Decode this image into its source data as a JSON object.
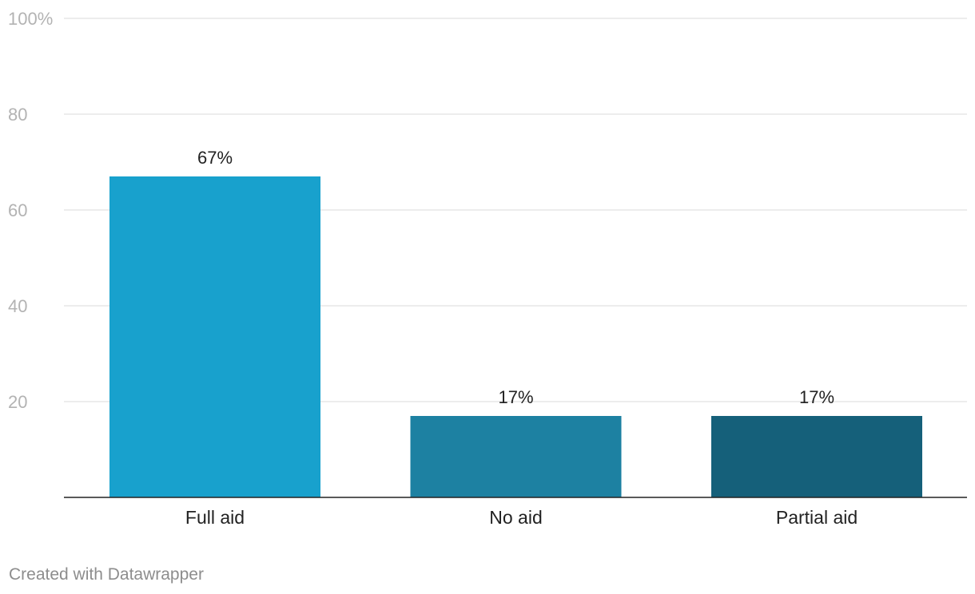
{
  "chart_data": {
    "type": "bar",
    "categories": [
      "Full aid",
      "No aid",
      "Partial aid"
    ],
    "values": [
      67,
      17,
      17
    ],
    "value_labels": [
      "67%",
      "17%",
      "17%"
    ],
    "colors": [
      "#18a1cd",
      "#1d81a2",
      "#15607a"
    ],
    "ylim": [
      0,
      100
    ],
    "y_ticks": [
      20,
      40,
      60,
      80,
      100
    ],
    "y_tick_labels": [
      "20",
      "40",
      "60",
      "80",
      "100%"
    ],
    "grid": true
  },
  "credit": "Created with Datawrapper"
}
